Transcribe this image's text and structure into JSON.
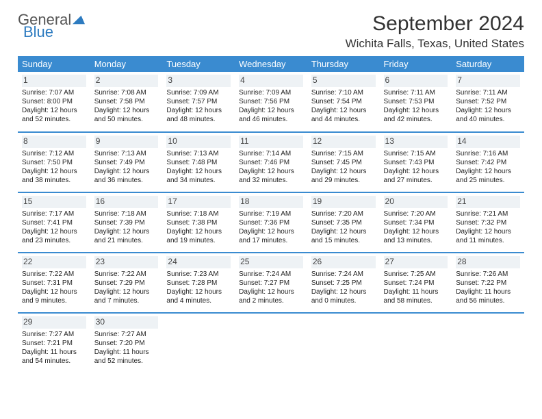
{
  "logo": {
    "line1": "General",
    "line2": "Blue"
  },
  "title": "September 2024",
  "location": "Wichita Falls, Texas, United States",
  "colors": {
    "header_bg": "#3a8bd0",
    "header_text": "#ffffff",
    "row_divider": "#3a8bd0",
    "logo_blue": "#2d7bc0",
    "logo_gray": "#555555",
    "daynum_bg": "#eef2f5",
    "body_text": "#222222",
    "background": "#ffffff"
  },
  "typography": {
    "title_fontsize": 30,
    "location_fontsize": 17,
    "weekday_fontsize": 13,
    "daynum_fontsize": 12,
    "body_fontsize": 10
  },
  "weekdays": [
    "Sunday",
    "Monday",
    "Tuesday",
    "Wednesday",
    "Thursday",
    "Friday",
    "Saturday"
  ],
  "days": [
    {
      "n": "1",
      "sunrise": "7:07 AM",
      "sunset": "8:00 PM",
      "daylight": "12 hours and 52 minutes."
    },
    {
      "n": "2",
      "sunrise": "7:08 AM",
      "sunset": "7:58 PM",
      "daylight": "12 hours and 50 minutes."
    },
    {
      "n": "3",
      "sunrise": "7:09 AM",
      "sunset": "7:57 PM",
      "daylight": "12 hours and 48 minutes."
    },
    {
      "n": "4",
      "sunrise": "7:09 AM",
      "sunset": "7:56 PM",
      "daylight": "12 hours and 46 minutes."
    },
    {
      "n": "5",
      "sunrise": "7:10 AM",
      "sunset": "7:54 PM",
      "daylight": "12 hours and 44 minutes."
    },
    {
      "n": "6",
      "sunrise": "7:11 AM",
      "sunset": "7:53 PM",
      "daylight": "12 hours and 42 minutes."
    },
    {
      "n": "7",
      "sunrise": "7:11 AM",
      "sunset": "7:52 PM",
      "daylight": "12 hours and 40 minutes."
    },
    {
      "n": "8",
      "sunrise": "7:12 AM",
      "sunset": "7:50 PM",
      "daylight": "12 hours and 38 minutes."
    },
    {
      "n": "9",
      "sunrise": "7:13 AM",
      "sunset": "7:49 PM",
      "daylight": "12 hours and 36 minutes."
    },
    {
      "n": "10",
      "sunrise": "7:13 AM",
      "sunset": "7:48 PM",
      "daylight": "12 hours and 34 minutes."
    },
    {
      "n": "11",
      "sunrise": "7:14 AM",
      "sunset": "7:46 PM",
      "daylight": "12 hours and 32 minutes."
    },
    {
      "n": "12",
      "sunrise": "7:15 AM",
      "sunset": "7:45 PM",
      "daylight": "12 hours and 29 minutes."
    },
    {
      "n": "13",
      "sunrise": "7:15 AM",
      "sunset": "7:43 PM",
      "daylight": "12 hours and 27 minutes."
    },
    {
      "n": "14",
      "sunrise": "7:16 AM",
      "sunset": "7:42 PM",
      "daylight": "12 hours and 25 minutes."
    },
    {
      "n": "15",
      "sunrise": "7:17 AM",
      "sunset": "7:41 PM",
      "daylight": "12 hours and 23 minutes."
    },
    {
      "n": "16",
      "sunrise": "7:18 AM",
      "sunset": "7:39 PM",
      "daylight": "12 hours and 21 minutes."
    },
    {
      "n": "17",
      "sunrise": "7:18 AM",
      "sunset": "7:38 PM",
      "daylight": "12 hours and 19 minutes."
    },
    {
      "n": "18",
      "sunrise": "7:19 AM",
      "sunset": "7:36 PM",
      "daylight": "12 hours and 17 minutes."
    },
    {
      "n": "19",
      "sunrise": "7:20 AM",
      "sunset": "7:35 PM",
      "daylight": "12 hours and 15 minutes."
    },
    {
      "n": "20",
      "sunrise": "7:20 AM",
      "sunset": "7:34 PM",
      "daylight": "12 hours and 13 minutes."
    },
    {
      "n": "21",
      "sunrise": "7:21 AM",
      "sunset": "7:32 PM",
      "daylight": "12 hours and 11 minutes."
    },
    {
      "n": "22",
      "sunrise": "7:22 AM",
      "sunset": "7:31 PM",
      "daylight": "12 hours and 9 minutes."
    },
    {
      "n": "23",
      "sunrise": "7:22 AM",
      "sunset": "7:29 PM",
      "daylight": "12 hours and 7 minutes."
    },
    {
      "n": "24",
      "sunrise": "7:23 AM",
      "sunset": "7:28 PM",
      "daylight": "12 hours and 4 minutes."
    },
    {
      "n": "25",
      "sunrise": "7:24 AM",
      "sunset": "7:27 PM",
      "daylight": "12 hours and 2 minutes."
    },
    {
      "n": "26",
      "sunrise": "7:24 AM",
      "sunset": "7:25 PM",
      "daylight": "12 hours and 0 minutes."
    },
    {
      "n": "27",
      "sunrise": "7:25 AM",
      "sunset": "7:24 PM",
      "daylight": "11 hours and 58 minutes."
    },
    {
      "n": "28",
      "sunrise": "7:26 AM",
      "sunset": "7:22 PM",
      "daylight": "11 hours and 56 minutes."
    },
    {
      "n": "29",
      "sunrise": "7:27 AM",
      "sunset": "7:21 PM",
      "daylight": "11 hours and 54 minutes."
    },
    {
      "n": "30",
      "sunrise": "7:27 AM",
      "sunset": "7:20 PM",
      "daylight": "11 hours and 52 minutes."
    }
  ],
  "labels": {
    "sunrise": "Sunrise:",
    "sunset": "Sunset:",
    "daylight": "Daylight:"
  }
}
